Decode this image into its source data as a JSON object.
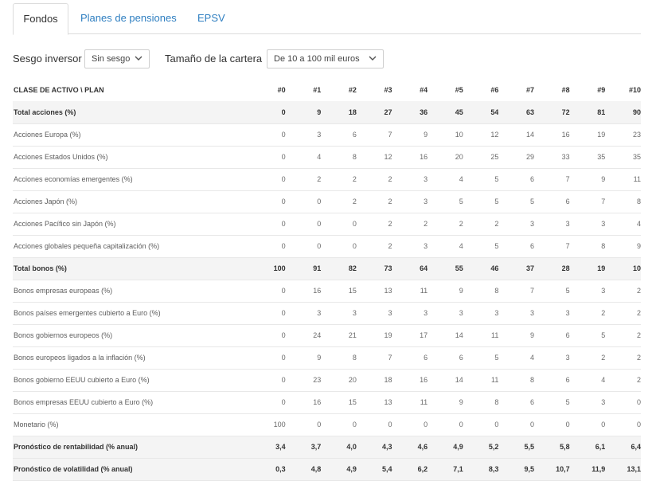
{
  "tabs": [
    "Fondos",
    "Planes de pensiones",
    "EPSV"
  ],
  "filters": {
    "sesgo_label": "Sesgo inversor",
    "sesgo_value": "Sin sesgo",
    "tamano_label": "Tamaño de la cartera",
    "tamano_value": "De 10 a 100 mil euros"
  },
  "table": {
    "headers": [
      "CLASE DE ACTIVO \\ PLAN",
      "#0",
      "#1",
      "#2",
      "#3",
      "#4",
      "#5",
      "#6",
      "#7",
      "#8",
      "#9",
      "#10"
    ],
    "rows": [
      {
        "bold": true,
        "cells": [
          "Total acciones (%)",
          "0",
          "9",
          "18",
          "27",
          "36",
          "45",
          "54",
          "63",
          "72",
          "81",
          "90"
        ]
      },
      {
        "bold": false,
        "cells": [
          "Acciones Europa (%)",
          "0",
          "3",
          "6",
          "7",
          "9",
          "10",
          "12",
          "14",
          "16",
          "19",
          "23"
        ]
      },
      {
        "bold": false,
        "cells": [
          "Acciones Estados Unidos (%)",
          "0",
          "4",
          "8",
          "12",
          "16",
          "20",
          "25",
          "29",
          "33",
          "35",
          "35"
        ]
      },
      {
        "bold": false,
        "cells": [
          "Acciones economías emergentes (%)",
          "0",
          "2",
          "2",
          "2",
          "3",
          "4",
          "5",
          "6",
          "7",
          "9",
          "11"
        ]
      },
      {
        "bold": false,
        "cells": [
          "Acciones Japón (%)",
          "0",
          "0",
          "2",
          "2",
          "3",
          "5",
          "5",
          "5",
          "6",
          "7",
          "8"
        ]
      },
      {
        "bold": false,
        "cells": [
          "Acciones Pacífico sin Japón (%)",
          "0",
          "0",
          "0",
          "2",
          "2",
          "2",
          "2",
          "3",
          "3",
          "3",
          "4"
        ]
      },
      {
        "bold": false,
        "cells": [
          "Acciones globales pequeña capitalización (%)",
          "0",
          "0",
          "0",
          "2",
          "3",
          "4",
          "5",
          "6",
          "7",
          "8",
          "9"
        ]
      },
      {
        "bold": true,
        "cells": [
          "Total bonos (%)",
          "100",
          "91",
          "82",
          "73",
          "64",
          "55",
          "46",
          "37",
          "28",
          "19",
          "10"
        ]
      },
      {
        "bold": false,
        "cells": [
          "Bonos empresas europeas (%)",
          "0",
          "16",
          "15",
          "13",
          "11",
          "9",
          "8",
          "7",
          "5",
          "3",
          "2"
        ]
      },
      {
        "bold": false,
        "cells": [
          "Bonos países emergentes cubierto a Euro (%)",
          "0",
          "3",
          "3",
          "3",
          "3",
          "3",
          "3",
          "3",
          "3",
          "2",
          "2"
        ]
      },
      {
        "bold": false,
        "cells": [
          "Bonos gobiernos europeos (%)",
          "0",
          "24",
          "21",
          "19",
          "17",
          "14",
          "11",
          "9",
          "6",
          "5",
          "2"
        ]
      },
      {
        "bold": false,
        "cells": [
          "Bonos europeos ligados a la inflación (%)",
          "0",
          "9",
          "8",
          "7",
          "6",
          "6",
          "5",
          "4",
          "3",
          "2",
          "2"
        ]
      },
      {
        "bold": false,
        "cells": [
          "Bonos gobierno EEUU cubierto a Euro (%)",
          "0",
          "23",
          "20",
          "18",
          "16",
          "14",
          "11",
          "8",
          "6",
          "4",
          "2"
        ]
      },
      {
        "bold": false,
        "cells": [
          "Bonos empresas EEUU cubierto a Euro (%)",
          "0",
          "16",
          "15",
          "13",
          "11",
          "9",
          "8",
          "6",
          "5",
          "3",
          "0"
        ]
      },
      {
        "bold": false,
        "cells": [
          "Monetario (%)",
          "100",
          "0",
          "0",
          "0",
          "0",
          "0",
          "0",
          "0",
          "0",
          "0",
          "0"
        ]
      },
      {
        "bold": true,
        "cells": [
          "Pronóstico de rentabilidad (% anual)",
          "3,4",
          "3,7",
          "4,0",
          "4,3",
          "4,6",
          "4,9",
          "5,2",
          "5,5",
          "5,8",
          "6,1",
          "6,4"
        ]
      },
      {
        "bold": true,
        "cells": [
          "Pronóstico de volatilidad (% anual)",
          "0,3",
          "4,8",
          "4,9",
          "5,4",
          "6,2",
          "7,1",
          "8,3",
          "9,5",
          "10,7",
          "11,9",
          "13,1"
        ]
      }
    ]
  }
}
